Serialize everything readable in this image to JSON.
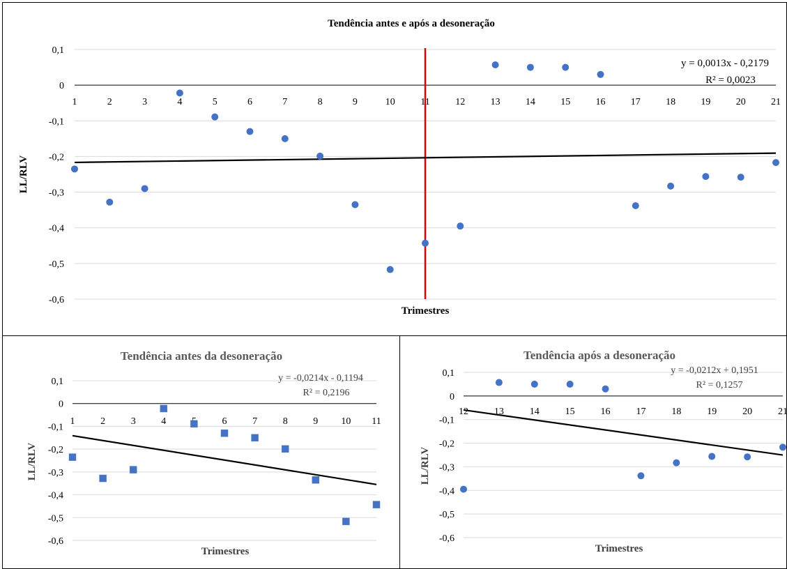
{
  "chart_data": [
    {
      "type": "scatter",
      "title": "Tendência antes e após a desoneração",
      "xlabel": "Trimestres",
      "ylabel": "LL/RLV",
      "ylim": [
        -0.6,
        0.1
      ],
      "yticks": [
        "0,1",
        "0",
        "-0,1",
        "-0,2",
        "-0,3",
        "-0,4",
        "-0,5",
        "-0,6"
      ],
      "x": [
        1,
        2,
        3,
        4,
        5,
        6,
        7,
        8,
        9,
        10,
        11,
        12,
        13,
        14,
        15,
        16,
        17,
        18,
        19,
        20,
        21
      ],
      "y": [
        -0.235,
        -0.328,
        -0.29,
        -0.022,
        -0.089,
        -0.13,
        -0.15,
        -0.199,
        -0.335,
        -0.517,
        -0.443,
        -0.395,
        0.057,
        0.05,
        0.05,
        0.03,
        -0.338,
        -0.283,
        -0.256,
        -0.258,
        -0.217
      ],
      "trendline": {
        "slope": 0.0013,
        "intercept": -0.2179,
        "equation": "y = 0,0013x - 0,2179",
        "r2": "R² = 0,0023"
      },
      "vertical_marker_x": 11,
      "grid": true,
      "colors": {
        "points": "#4472c4",
        "trend": "#000000",
        "marker": "#e00000"
      }
    },
    {
      "type": "scatter",
      "title": "Tendência antes da desoneração",
      "xlabel": "Trimestres",
      "ylabel": "LL/RLV",
      "ylim": [
        -0.6,
        0.1
      ],
      "yticks": [
        "0,1",
        "0",
        "-0,1",
        "-0,2",
        "-0,3",
        "-0,4",
        "-0,5",
        "-0,6"
      ],
      "x": [
        1,
        2,
        3,
        4,
        5,
        6,
        7,
        8,
        9,
        10,
        11
      ],
      "y": [
        -0.235,
        -0.328,
        -0.29,
        -0.022,
        -0.089,
        -0.13,
        -0.15,
        -0.199,
        -0.335,
        -0.517,
        -0.443
      ],
      "trendline": {
        "slope": -0.0214,
        "intercept": -0.1194,
        "equation": "y = -0,0214x - 0,1194",
        "r2": "R² = 0,2196"
      },
      "grid": true,
      "colors": {
        "points": "#4472c4",
        "trend": "#000000"
      }
    },
    {
      "type": "scatter",
      "title": "Tendência após a desoneração",
      "xlabel": "Trimestres",
      "ylabel": "LL/RLV",
      "ylim": [
        -0.6,
        0.1
      ],
      "yticks": [
        "0,1",
        "0",
        "-0,1",
        "-0,2",
        "-0,3",
        "-0,4",
        "-0,5",
        "-0,6"
      ],
      "x": [
        12,
        13,
        14,
        15,
        16,
        17,
        18,
        19,
        20,
        21
      ],
      "y": [
        -0.395,
        0.057,
        0.05,
        0.05,
        0.03,
        -0.338,
        -0.283,
        -0.256,
        -0.258,
        -0.217
      ],
      "trendline": {
        "slope": -0.0212,
        "intercept": 0.1951,
        "equation": "y = -0,0212x + 0,1951",
        "r2": "R² = 0,1257"
      },
      "grid": true,
      "colors": {
        "points": "#4472c4",
        "trend": "#000000"
      }
    }
  ]
}
